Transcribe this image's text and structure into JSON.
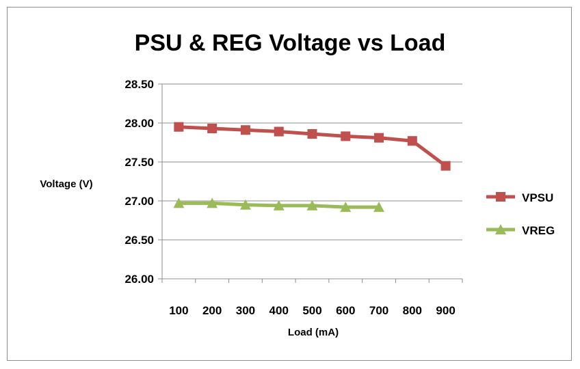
{
  "chart_data": {
    "type": "line",
    "title": "PSU & REG Voltage vs Load",
    "xlabel": "Load (mA)",
    "ylabel": "Voltage (V)",
    "categories": [
      "100",
      "200",
      "300",
      "400",
      "500",
      "600",
      "700",
      "800",
      "900"
    ],
    "y_ticks": [
      "26.00",
      "26.50",
      "27.00",
      "27.50",
      "28.00",
      "28.50"
    ],
    "ylim": [
      26.0,
      28.5
    ],
    "grid": true,
    "legend_position": "right",
    "series": [
      {
        "name": "VPSU",
        "marker": "square",
        "color": "#c0504d",
        "values": [
          27.95,
          27.93,
          27.91,
          27.89,
          27.86,
          27.83,
          27.81,
          27.77,
          27.45
        ]
      },
      {
        "name": "VREG",
        "marker": "triangle",
        "color": "#9bbb59",
        "values": [
          26.97,
          26.97,
          26.95,
          26.94,
          26.94,
          26.92,
          26.92,
          null,
          null
        ]
      }
    ]
  }
}
